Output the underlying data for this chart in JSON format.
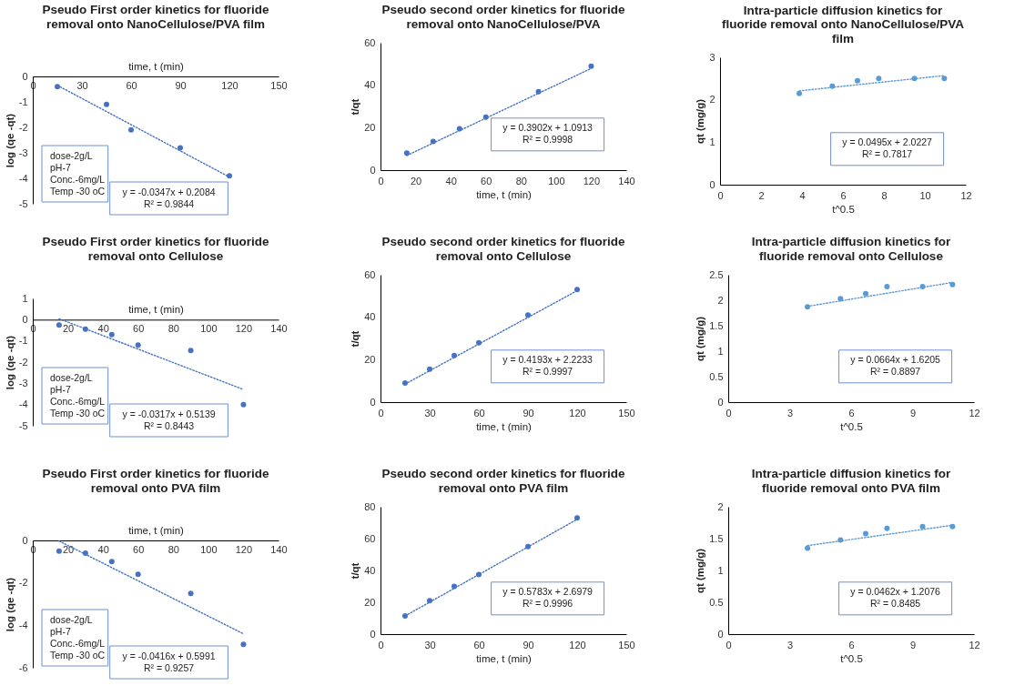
{
  "chart_data": [
    {
      "type": "scatter",
      "title": "Pseudo First order kinetics for fluoride removal onto NanoCellulose/PVA film",
      "xlabel": "time, t (min)",
      "ylabel": "log (qe -qt)",
      "xlim": [
        0,
        150
      ],
      "xticks": [
        0,
        30,
        60,
        90,
        120,
        150
      ],
      "ylim": [
        -5,
        0
      ],
      "yticks": [
        0,
        -1,
        -2,
        -3,
        -4,
        -5
      ],
      "series": [
        {
          "type": "scatter",
          "marker": "circle",
          "color": "#4472c4",
          "x": [
            15,
            45,
            60,
            90,
            120
          ],
          "values": [
            -0.4,
            -1.1,
            -2.1,
            -2.8,
            -3.9
          ]
        },
        {
          "type": "line",
          "color": "#4472c4",
          "line_style": "dotted",
          "x": [
            15,
            120
          ],
          "values": [
            -0.35,
            -3.95
          ]
        }
      ],
      "annotations": [
        "dose-2g/L",
        "pH-7",
        "Conc.-6mg/L",
        "Temp -30 oC",
        "y = -0.0347x + 0.2084",
        "R² = 0.9844"
      ]
    },
    {
      "type": "scatter",
      "title": "Pseudo second order kinetics for fluoride removal onto NanoCellulose/PVA",
      "xlabel": "time, t (min)",
      "ylabel": "t/qt",
      "xlim": [
        0,
        140
      ],
      "xticks": [
        0,
        20,
        40,
        60,
        80,
        100,
        120,
        140
      ],
      "ylim": [
        0,
        60
      ],
      "yticks": [
        0,
        20,
        40,
        60
      ],
      "series": [
        {
          "type": "scatter",
          "marker": "circle",
          "color": "#4472c4",
          "x": [
            15,
            30,
            45,
            60,
            90,
            120
          ],
          "values": [
            8,
            13.5,
            19.5,
            25,
            37,
            49
          ]
        },
        {
          "type": "line",
          "color": "#4472c4",
          "line_style": "dotted",
          "x": [
            15,
            120
          ],
          "values": [
            6.9,
            47.9
          ]
        }
      ],
      "annotations": [
        "y = 0.3902x + 1.0913",
        "R² = 0.9998"
      ]
    },
    {
      "type": "scatter",
      "title": "Intra-particle diffusion kinetics for fluoride removal onto NanoCellulose/PVA film",
      "xlabel": "t^0.5",
      "ylabel": "qt (mg/g)",
      "xlim": [
        0,
        12
      ],
      "xticks": [
        0,
        2,
        4,
        6,
        8,
        10,
        12
      ],
      "ylim": [
        0,
        3
      ],
      "yticks": [
        0,
        1,
        2,
        3
      ],
      "series": [
        {
          "type": "scatter",
          "marker": "circle",
          "color": "#5b9bd5",
          "x": [
            3.87,
            5.48,
            6.71,
            7.75,
            9.49,
            10.95
          ],
          "values": [
            2.15,
            2.32,
            2.45,
            2.5,
            2.5,
            2.5
          ]
        },
        {
          "type": "line",
          "color": "#5b9bd5",
          "line_style": "dotted",
          "x": [
            3.87,
            10.95
          ],
          "values": [
            2.21,
            2.57
          ]
        }
      ],
      "annotations": [
        "y = 0.0495x + 2.0227",
        "R² = 0.7817"
      ]
    },
    {
      "type": "scatter",
      "title": "Pseudo First order kinetics for fluoride removal onto Cellulose",
      "xlabel": "time, t (min)",
      "ylabel": "log (qe -qt)",
      "xlim": [
        0,
        140
      ],
      "xticks": [
        0,
        20,
        40,
        60,
        80,
        100,
        120,
        140
      ],
      "ylim": [
        -5,
        1
      ],
      "yticks": [
        1,
        0,
        -1,
        -2,
        -3,
        -4,
        -5
      ],
      "series": [
        {
          "type": "scatter",
          "marker": "circle",
          "color": "#4472c4",
          "x": [
            15,
            30,
            45,
            60,
            90,
            120
          ],
          "values": [
            -0.25,
            -0.45,
            -0.7,
            -1.2,
            -1.45,
            -4.0
          ]
        },
        {
          "type": "line",
          "color": "#4472c4",
          "line_style": "dotted",
          "x": [
            15,
            120
          ],
          "values": [
            0.04,
            -3.29
          ]
        }
      ],
      "annotations": [
        "dose-2g/L",
        "pH-7",
        "Conc.-6mg/L",
        "Temp -30 oC",
        "y = -0.0317x + 0.5139",
        "R² = 0.8443"
      ]
    },
    {
      "type": "scatter",
      "title": "Pseudo second order kinetics for fluoride removal onto Cellulose",
      "xlabel": "time, t (min)",
      "ylabel": "t/qt",
      "xlim": [
        0,
        150
      ],
      "xticks": [
        0,
        30,
        60,
        90,
        120,
        150
      ],
      "ylim": [
        0,
        60
      ],
      "yticks": [
        0,
        20,
        40,
        60
      ],
      "series": [
        {
          "type": "scatter",
          "marker": "circle",
          "color": "#4472c4",
          "x": [
            15,
            30,
            45,
            60,
            90,
            120
          ],
          "values": [
            9,
            15.5,
            22,
            28,
            41,
            53
          ]
        },
        {
          "type": "line",
          "color": "#4472c4",
          "line_style": "dotted",
          "x": [
            15,
            120
          ],
          "values": [
            8.5,
            52.5
          ]
        }
      ],
      "annotations": [
        "y = 0.4193x + 2.2233",
        "R² = 0.9997"
      ]
    },
    {
      "type": "scatter",
      "title": "Intra-particle diffusion kinetics for fluoride removal onto Cellulose",
      "xlabel": "t^0.5",
      "ylabel": "qt (mg/g)",
      "xlim": [
        0,
        12
      ],
      "xticks": [
        0,
        3,
        6,
        9,
        12
      ],
      "ylim": [
        0,
        2.5
      ],
      "yticks": [
        0,
        0.5,
        1,
        1.5,
        2,
        2.5
      ],
      "series": [
        {
          "type": "scatter",
          "marker": "circle",
          "color": "#5b9bd5",
          "x": [
            3.87,
            5.48,
            6.71,
            7.75,
            9.49,
            10.95
          ],
          "values": [
            1.87,
            2.03,
            2.13,
            2.27,
            2.27,
            2.31
          ]
        },
        {
          "type": "line",
          "color": "#5b9bd5",
          "line_style": "dotted",
          "x": [
            3.87,
            10.95
          ],
          "values": [
            1.88,
            2.35
          ]
        }
      ],
      "annotations": [
        "y = 0.0664x + 1.6205",
        "R² = 0.8897"
      ]
    },
    {
      "type": "scatter",
      "title": "Pseudo First order kinetics for fluoride removal onto PVA film",
      "xlabel": "time, t (min)",
      "ylabel": "log (qe -qt)",
      "xlim": [
        0,
        140
      ],
      "xticks": [
        0,
        20,
        40,
        60,
        80,
        100,
        120,
        140
      ],
      "ylim": [
        -6,
        0
      ],
      "yticks": [
        0,
        -2,
        -4,
        -6
      ],
      "series": [
        {
          "type": "scatter",
          "marker": "circle",
          "color": "#4472c4",
          "x": [
            15,
            30,
            45,
            60,
            90,
            120
          ],
          "values": [
            -0.5,
            -0.6,
            -1.0,
            -1.6,
            -2.5,
            -4.9
          ]
        },
        {
          "type": "line",
          "color": "#4472c4",
          "line_style": "dotted",
          "x": [
            15,
            120
          ],
          "values": [
            -0.03,
            -4.4
          ]
        }
      ],
      "annotations": [
        "dose-2g/L",
        "pH-7",
        "Conc.-6mg/L",
        "Temp -30 oC",
        "y = -0.0416x + 0.5991",
        "R² = 0.9257"
      ]
    },
    {
      "type": "scatter",
      "title": "Pseudo second order kinetics for fluoride removal onto PVA film",
      "xlabel": "time, t (min)",
      "ylabel": "t/qt",
      "xlim": [
        0,
        150
      ],
      "xticks": [
        0,
        30,
        60,
        90,
        120,
        150
      ],
      "ylim": [
        0,
        80
      ],
      "yticks": [
        0,
        20,
        40,
        60,
        80
      ],
      "series": [
        {
          "type": "scatter",
          "marker": "circle",
          "color": "#4472c4",
          "x": [
            15,
            30,
            45,
            60,
            90,
            120
          ],
          "values": [
            11.5,
            21,
            30,
            37.5,
            55,
            73
          ]
        },
        {
          "type": "line",
          "color": "#4472c4",
          "line_style": "dotted",
          "x": [
            15,
            120
          ],
          "values": [
            11.4,
            72.1
          ]
        }
      ],
      "annotations": [
        "y = 0.5783x + 2.6979",
        "R² = 0.9996"
      ]
    },
    {
      "type": "scatter",
      "title": "Intra-particle diffusion kinetics for fluoride removal onto PVA film",
      "xlabel": "t^0.5",
      "ylabel": "qt (mg/g)",
      "xlim": [
        0,
        12
      ],
      "xticks": [
        0,
        3,
        6,
        9,
        12
      ],
      "ylim": [
        0,
        2
      ],
      "yticks": [
        0,
        0.5,
        1,
        1.5,
        2
      ],
      "series": [
        {
          "type": "scatter",
          "marker": "circle",
          "color": "#5b9bd5",
          "x": [
            3.87,
            5.48,
            6.71,
            7.75,
            9.49,
            10.95
          ],
          "values": [
            1.35,
            1.48,
            1.58,
            1.66,
            1.69,
            1.69
          ]
        },
        {
          "type": "line",
          "color": "#5b9bd5",
          "line_style": "dotted",
          "x": [
            3.87,
            10.95
          ],
          "values": [
            1.39,
            1.71
          ]
        }
      ],
      "annotations": [
        "y = 0.0462x + 1.2076",
        "R² = 0.8485"
      ]
    }
  ]
}
